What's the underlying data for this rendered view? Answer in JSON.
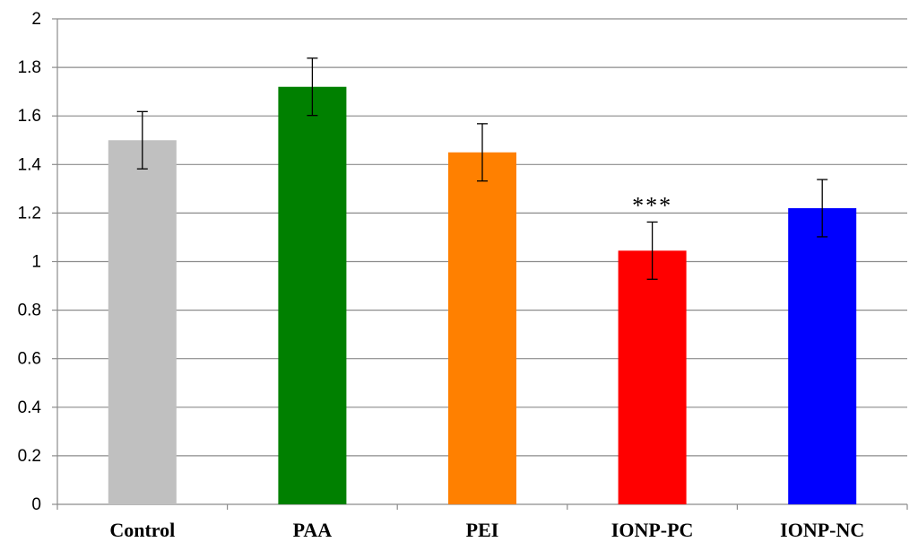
{
  "chart_data": {
    "type": "bar",
    "title": "",
    "xlabel": "",
    "ylabel": "",
    "categories": [
      "Control",
      "PAA",
      "PEI",
      "IONP-PC",
      "IONP-NC"
    ],
    "values": [
      1.5,
      1.72,
      1.45,
      1.045,
      1.22
    ],
    "errors": [
      0.118,
      0.118,
      0.118,
      0.118,
      0.118
    ],
    "colors": [
      "#c0c0c0",
      "#008000",
      "#ff8000",
      "#ff0000",
      "#0000ff"
    ],
    "ylim": [
      0,
      2
    ],
    "yticks": [
      "0",
      "0.2",
      "0.4",
      "0.6",
      "0.8",
      "1",
      "1.2",
      "1.4",
      "1.6",
      "1.8",
      "2"
    ],
    "ytick_values": [
      0,
      0.2,
      0.4,
      0.6,
      0.8,
      1,
      1.2,
      1.4,
      1.6,
      1.8,
      2
    ],
    "grid": true,
    "annotations": [
      {
        "category": "IONP-PC",
        "text": "***"
      }
    ]
  }
}
